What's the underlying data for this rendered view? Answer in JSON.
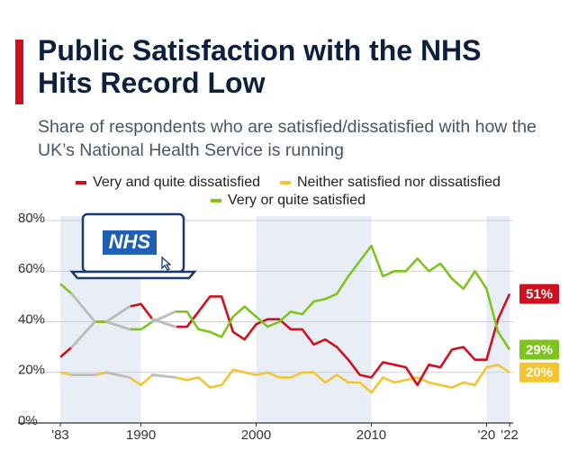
{
  "chart_data": {
    "type": "line",
    "title": "Public Satisfaction with the NHS Hits Record Low",
    "subtitle": "Share of respondents who are satisfied/dissatisfied with how the UK’s National Health Service is running",
    "logo": "NHS",
    "x": [
      1983,
      1984,
      1986,
      1987,
      1989,
      1990,
      1991,
      1993,
      1994,
      1995,
      1996,
      1997,
      1998,
      1999,
      2000,
      2001,
      2002,
      2003,
      2004,
      2005,
      2006,
      2007,
      2008,
      2009,
      2010,
      2011,
      2012,
      2013,
      2014,
      2015,
      2016,
      2017,
      2018,
      2019,
      2020,
      2021,
      2022
    ],
    "series": [
      {
        "name": "Very and quite dissatisfied",
        "color": "#d0101e",
        "values": [
          26,
          30,
          40,
          40,
          46,
          47,
          41,
          38,
          38,
          44,
          50,
          50,
          36,
          33,
          39,
          41,
          41,
          37,
          37,
          31,
          33,
          30,
          25,
          19,
          18,
          24,
          23,
          22,
          15,
          23,
          22,
          29,
          30,
          25,
          25,
          41,
          51
        ],
        "value_labels": [
          null,
          null,
          null,
          null,
          null,
          null,
          null,
          null,
          null,
          null,
          null,
          null,
          null,
          null,
          null,
          null,
          null,
          null,
          null,
          null,
          null,
          null,
          null,
          null,
          null,
          null,
          null,
          null,
          null,
          null,
          null,
          null,
          null,
          null,
          null,
          null,
          "51%"
        ]
      },
      {
        "name": "Neither satisfied nor dissatisfied",
        "color": "#f2c531",
        "values": [
          20,
          19,
          19,
          20,
          18,
          15,
          19,
          18,
          17,
          18,
          14,
          15,
          21,
          20,
          19,
          20,
          18,
          18,
          20,
          20,
          16,
          19,
          16,
          16,
          12,
          18,
          16,
          17,
          18,
          16,
          15,
          14,
          16,
          15,
          22,
          23,
          20
        ],
        "value_labels": [
          null,
          null,
          null,
          null,
          null,
          null,
          null,
          null,
          null,
          null,
          null,
          null,
          null,
          null,
          null,
          null,
          null,
          null,
          null,
          null,
          null,
          null,
          null,
          null,
          null,
          null,
          null,
          null,
          null,
          null,
          null,
          null,
          null,
          null,
          null,
          null,
          "20%"
        ]
      },
      {
        "name": "Very or quite satisfied",
        "color": "#7dc41f",
        "values": [
          55,
          51,
          40,
          40,
          37,
          37,
          40,
          44,
          44,
          37,
          36,
          34,
          42,
          46,
          42,
          38,
          40,
          44,
          43,
          48,
          49,
          51,
          58,
          64,
          70,
          58,
          60,
          60,
          65,
          60,
          63,
          57,
          53,
          60,
          53,
          36,
          29
        ],
        "value_labels": [
          null,
          null,
          null,
          null,
          null,
          null,
          null,
          null,
          null,
          null,
          null,
          null,
          null,
          null,
          null,
          null,
          null,
          null,
          null,
          null,
          null,
          null,
          null,
          null,
          null,
          null,
          null,
          null,
          null,
          null,
          null,
          null,
          null,
          null,
          null,
          null,
          "29%"
        ]
      }
    ],
    "xlim": [
      1983,
      2022
    ],
    "xticks": [
      {
        "value": 1983,
        "label": "'83"
      },
      1990,
      2000,
      2010,
      {
        "value": 2020,
        "label": "'20"
      },
      {
        "value": 2022,
        "label": "'22"
      }
    ],
    "ylim": [
      0,
      80
    ],
    "yticks": [
      {
        "value": 0,
        "label": "0%"
      },
      {
        "value": 20,
        "label": "20%"
      },
      {
        "value": 40,
        "label": "40%"
      },
      {
        "value": 60,
        "label": "60%"
      },
      {
        "value": 80,
        "label": "80%"
      }
    ],
    "grid": true
  }
}
